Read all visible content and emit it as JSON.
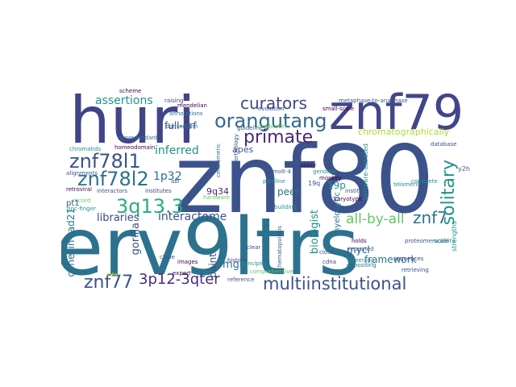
{
  "words": {
    "erv9ltrs": "erv9ltrs",
    "znf80": "znf80",
    "huri": "huri",
    "znf79": "znf79",
    "multiinstitutional": "multiinstitutional",
    "znf7812": "znf78l2",
    "znf7811": "znf78l1",
    "orangutang": "orangutang",
    "curators": "curators",
    "primate": "primate",
    "q13": "3q13.3",
    "p12": "3p12-3qter",
    "znf77": "znf77",
    "znf7": "znf7",
    "solitary": "solitary",
    "allbyall": "all-by-all",
    "assertions": "assertions",
    "interactome": "interactome",
    "inferred": "inferred",
    "cohesin": "cohesin-rad21",
    "gorilla": "gorilla",
    "chromato": "chromatographically",
    "fullorf": "full-orf",
    "p32": "1p32",
    "libraries": "libraries",
    "biologist": "biologist",
    "framework": "framework",
    "mycl": "mycl",
    "peer": "peer",
    "p19": "19p",
    "paint": "paint",
    "mgc": "mgc",
    "q34": "9q34",
    "apes": "apes",
    "myelocytic": "myelocytic",
    "alignments": "alignments",
    "zincfinger": "zinc-finger",
    "retroviral": "retroviral",
    "interactors": "interactors",
    "institutes": "institutes",
    "chromatids": "chromatids",
    "homeodomain": "homeodomain",
    "nonredundant": "nonredundant",
    "reference": "reference",
    "screening": "screening",
    "repeated": "repeated",
    "holds": "holds",
    "cdna": "cdna",
    "close": "close",
    "building": "building",
    "comprehensive": "comprehensive",
    "metaphase": "metaphase-to-anaphase",
    "smallscale": "small-scale",
    "evolution": "evolution",
    "mendelian": "mendelian",
    "raising": "raising",
    "genome": "genome",
    "software": "software-assisted",
    "guidelines": "guidelines",
    "expert": "expert",
    "clone": "clone",
    "annotations": "annotations",
    "hardware": "hardware",
    "institute": "institute",
    "monkey": "monkey",
    "molt": "molt-4",
    "depositing": "depositing",
    "retrieving": "retrieving",
    "strengths": "strengths",
    "mbp": "mbp",
    "record": "record",
    "pt1": "pt1",
    "hematopoiesis": "hematopoiesis",
    "principles": "principles",
    "y2h": "y2h",
    "sequences": "sequences",
    "abl": "abl",
    "telomeric": "telomeric",
    "images": "images",
    "centromeric": "centromeric",
    "orthology": "orthology",
    "duplicates": "duplicates",
    "scheme": "scheme",
    "assay": "assay",
    "pipeline": "pipeline",
    "consortium": "consortium",
    "history": "history",
    "clear": "clear",
    "q19": "19q",
    "karyotype": "karyotype",
    "database": "database",
    "complete": "complete",
    "proteome": "proteome-scale",
    "mobility": "mobility"
  },
  "colors": {
    "dark_purple": "#440154",
    "indigo": "#3b528b",
    "navy": "#414487",
    "teal": "#21918c",
    "blue": "#2c728e",
    "green": "#5ec962",
    "lime": "#addc30",
    "yellow": "#fde725",
    "sea": "#28ae80"
  }
}
